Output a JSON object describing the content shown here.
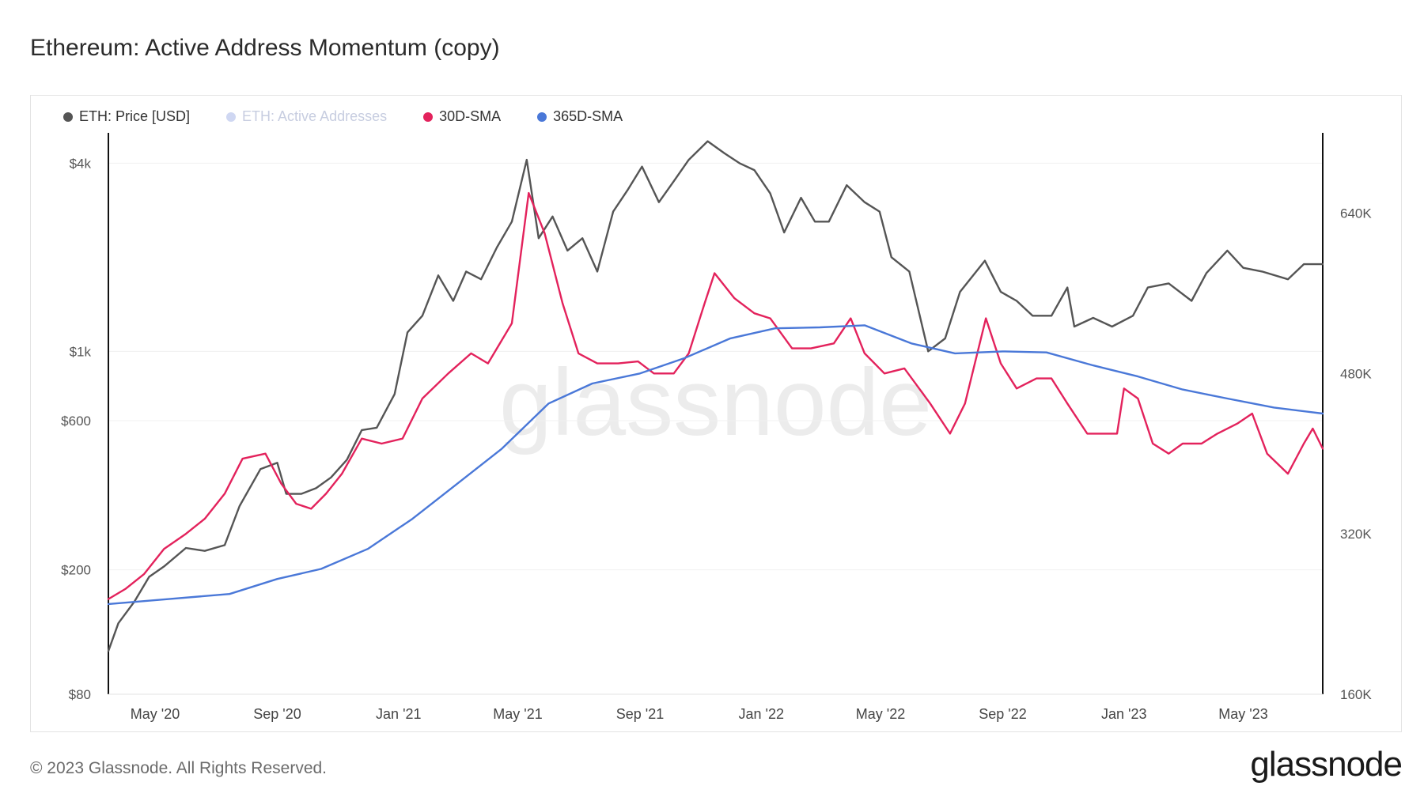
{
  "title": "Ethereum: Active Address Momentum (copy)",
  "footer": "© 2023 Glassnode. All Rights Reserved.",
  "logo": "glassnode",
  "watermark": "glassnode",
  "legend": [
    {
      "label": "ETH: Price [USD]",
      "color": "#555555",
      "dim": false
    },
    {
      "label": "ETH: Active Addresses",
      "color": "#cfd7f2",
      "dim": true
    },
    {
      "label": "30D-SMA",
      "color": "#e3225c",
      "dim": false
    },
    {
      "label": "365D-SMA",
      "color": "#4a78d8",
      "dim": false
    }
  ],
  "chart_data": {
    "type": "line",
    "x_ticks": [
      "May '20",
      "Sep '20",
      "Jan '21",
      "May '21",
      "Sep '21",
      "Jan '22",
      "May '22",
      "Sep '22",
      "Jan '23",
      "May '23"
    ],
    "left_axis": {
      "scale": "log",
      "ticks": [
        "$4k",
        "$1k",
        "$600",
        "$200",
        "$80"
      ],
      "tick_values": [
        4000,
        1000,
        600,
        200,
        80
      ],
      "range": [
        80,
        5000
      ]
    },
    "right_axis": {
      "scale": "linear",
      "ticks": [
        "640K",
        "480K",
        "320K",
        "160K"
      ],
      "tick_values": [
        640000,
        480000,
        320000,
        160000
      ],
      "range": [
        160000,
        720000
      ]
    },
    "x_range": [
      "2020-03-15",
      "2023-07-20"
    ],
    "series": [
      {
        "name": "ETH: Price [USD]",
        "axis": "left",
        "color": "#555555",
        "points": [
          [
            "2020-03-15",
            110
          ],
          [
            "2020-03-25",
            135
          ],
          [
            "2020-04-10",
            158
          ],
          [
            "2020-04-25",
            190
          ],
          [
            "2020-05-10",
            205
          ],
          [
            "2020-06-01",
            235
          ],
          [
            "2020-06-20",
            230
          ],
          [
            "2020-07-10",
            240
          ],
          [
            "2020-07-25",
            320
          ],
          [
            "2020-08-15",
            420
          ],
          [
            "2020-09-01",
            440
          ],
          [
            "2020-09-10",
            350
          ],
          [
            "2020-09-25",
            350
          ],
          [
            "2020-10-10",
            365
          ],
          [
            "2020-10-25",
            395
          ],
          [
            "2020-11-10",
            450
          ],
          [
            "2020-11-25",
            560
          ],
          [
            "2020-12-10",
            570
          ],
          [
            "2020-12-28",
            730
          ],
          [
            "2021-01-10",
            1150
          ],
          [
            "2021-01-25",
            1300
          ],
          [
            "2021-02-10",
            1750
          ],
          [
            "2021-02-25",
            1450
          ],
          [
            "2021-03-10",
            1800
          ],
          [
            "2021-03-25",
            1700
          ],
          [
            "2021-04-10",
            2150
          ],
          [
            "2021-04-25",
            2600
          ],
          [
            "2021-05-10",
            4100
          ],
          [
            "2021-05-22",
            2300
          ],
          [
            "2021-06-05",
            2700
          ],
          [
            "2021-06-20",
            2100
          ],
          [
            "2021-07-05",
            2300
          ],
          [
            "2021-07-20",
            1800
          ],
          [
            "2021-08-05",
            2800
          ],
          [
            "2021-08-20",
            3300
          ],
          [
            "2021-09-03",
            3900
          ],
          [
            "2021-09-20",
            3000
          ],
          [
            "2021-10-05",
            3500
          ],
          [
            "2021-10-20",
            4100
          ],
          [
            "2021-11-08",
            4700
          ],
          [
            "2021-11-25",
            4300
          ],
          [
            "2021-12-10",
            4000
          ],
          [
            "2021-12-25",
            3800
          ],
          [
            "2022-01-10",
            3200
          ],
          [
            "2022-01-24",
            2400
          ],
          [
            "2022-02-10",
            3100
          ],
          [
            "2022-02-24",
            2600
          ],
          [
            "2022-03-10",
            2600
          ],
          [
            "2022-03-28",
            3400
          ],
          [
            "2022-04-15",
            3000
          ],
          [
            "2022-04-30",
            2800
          ],
          [
            "2022-05-12",
            2000
          ],
          [
            "2022-05-30",
            1800
          ],
          [
            "2022-06-18",
            1000
          ],
          [
            "2022-07-05",
            1100
          ],
          [
            "2022-07-20",
            1550
          ],
          [
            "2022-08-14",
            1950
          ],
          [
            "2022-08-30",
            1550
          ],
          [
            "2022-09-15",
            1450
          ],
          [
            "2022-10-01",
            1300
          ],
          [
            "2022-10-20",
            1300
          ],
          [
            "2022-11-05",
            1600
          ],
          [
            "2022-11-12",
            1200
          ],
          [
            "2022-12-01",
            1280
          ],
          [
            "2022-12-20",
            1200
          ],
          [
            "2023-01-10",
            1300
          ],
          [
            "2023-01-25",
            1600
          ],
          [
            "2023-02-15",
            1650
          ],
          [
            "2023-03-10",
            1450
          ],
          [
            "2023-03-25",
            1780
          ],
          [
            "2023-04-15",
            2100
          ],
          [
            "2023-05-01",
            1850
          ],
          [
            "2023-05-20",
            1800
          ],
          [
            "2023-06-15",
            1700
          ],
          [
            "2023-07-01",
            1900
          ],
          [
            "2023-07-20",
            1900
          ]
        ]
      },
      {
        "name": "30D-SMA",
        "axis": "right",
        "color": "#e3225c",
        "points": [
          [
            "2020-03-15",
            255000
          ],
          [
            "2020-04-01",
            265000
          ],
          [
            "2020-04-20",
            280000
          ],
          [
            "2020-05-10",
            305000
          ],
          [
            "2020-06-01",
            320000
          ],
          [
            "2020-06-20",
            335000
          ],
          [
            "2020-07-10",
            360000
          ],
          [
            "2020-07-28",
            395000
          ],
          [
            "2020-08-20",
            400000
          ],
          [
            "2020-09-05",
            370000
          ],
          [
            "2020-09-20",
            350000
          ],
          [
            "2020-10-05",
            345000
          ],
          [
            "2020-10-20",
            360000
          ],
          [
            "2020-11-05",
            380000
          ],
          [
            "2020-11-25",
            415000
          ],
          [
            "2020-12-15",
            410000
          ],
          [
            "2021-01-05",
            415000
          ],
          [
            "2021-01-25",
            455000
          ],
          [
            "2021-02-20",
            480000
          ],
          [
            "2021-03-15",
            500000
          ],
          [
            "2021-04-01",
            490000
          ],
          [
            "2021-04-25",
            530000
          ],
          [
            "2021-05-12",
            660000
          ],
          [
            "2021-05-28",
            620000
          ],
          [
            "2021-06-15",
            550000
          ],
          [
            "2021-07-01",
            500000
          ],
          [
            "2021-07-20",
            490000
          ],
          [
            "2021-08-10",
            490000
          ],
          [
            "2021-08-30",
            492000
          ],
          [
            "2021-09-15",
            480000
          ],
          [
            "2021-10-05",
            480000
          ],
          [
            "2021-10-20",
            500000
          ],
          [
            "2021-11-05",
            550000
          ],
          [
            "2021-11-15",
            580000
          ],
          [
            "2021-12-05",
            555000
          ],
          [
            "2021-12-25",
            540000
          ],
          [
            "2022-01-10",
            535000
          ],
          [
            "2022-02-01",
            505000
          ],
          [
            "2022-02-20",
            505000
          ],
          [
            "2022-03-15",
            510000
          ],
          [
            "2022-04-01",
            535000
          ],
          [
            "2022-04-15",
            500000
          ],
          [
            "2022-05-05",
            480000
          ],
          [
            "2022-05-25",
            485000
          ],
          [
            "2022-06-20",
            450000
          ],
          [
            "2022-07-10",
            420000
          ],
          [
            "2022-07-25",
            450000
          ],
          [
            "2022-08-15",
            535000
          ],
          [
            "2022-08-30",
            490000
          ],
          [
            "2022-09-15",
            465000
          ],
          [
            "2022-10-05",
            475000
          ],
          [
            "2022-10-20",
            475000
          ],
          [
            "2022-11-05",
            450000
          ],
          [
            "2022-11-25",
            420000
          ],
          [
            "2022-12-15",
            420000
          ],
          [
            "2022-12-25",
            420000
          ],
          [
            "2023-01-01",
            465000
          ],
          [
            "2023-01-15",
            455000
          ],
          [
            "2023-01-30",
            410000
          ],
          [
            "2023-02-15",
            400000
          ],
          [
            "2023-03-01",
            410000
          ],
          [
            "2023-03-20",
            410000
          ],
          [
            "2023-04-05",
            420000
          ],
          [
            "2023-04-25",
            430000
          ],
          [
            "2023-05-10",
            440000
          ],
          [
            "2023-05-25",
            400000
          ],
          [
            "2023-06-15",
            380000
          ],
          [
            "2023-07-01",
            410000
          ],
          [
            "2023-07-10",
            425000
          ],
          [
            "2023-07-20",
            405000
          ]
        ]
      },
      {
        "name": "365D-SMA",
        "axis": "right",
        "color": "#4a78d8",
        "points": [
          [
            "2020-03-15",
            250000
          ],
          [
            "2020-05-15",
            255000
          ],
          [
            "2020-07-15",
            260000
          ],
          [
            "2020-09-01",
            275000
          ],
          [
            "2020-10-15",
            285000
          ],
          [
            "2020-12-01",
            305000
          ],
          [
            "2021-01-15",
            335000
          ],
          [
            "2021-03-01",
            370000
          ],
          [
            "2021-04-15",
            405000
          ],
          [
            "2021-06-01",
            450000
          ],
          [
            "2021-07-15",
            470000
          ],
          [
            "2021-09-01",
            480000
          ],
          [
            "2021-10-15",
            495000
          ],
          [
            "2021-12-01",
            515000
          ],
          [
            "2022-01-15",
            525000
          ],
          [
            "2022-03-01",
            526000
          ],
          [
            "2022-04-15",
            528000
          ],
          [
            "2022-06-01",
            510000
          ],
          [
            "2022-07-15",
            500000
          ],
          [
            "2022-09-01",
            502000
          ],
          [
            "2022-10-15",
            501000
          ],
          [
            "2022-12-01",
            488000
          ],
          [
            "2023-01-15",
            477000
          ],
          [
            "2023-03-01",
            464000
          ],
          [
            "2023-04-15",
            455000
          ],
          [
            "2023-06-01",
            446000
          ],
          [
            "2023-07-20",
            440000
          ]
        ]
      }
    ]
  }
}
